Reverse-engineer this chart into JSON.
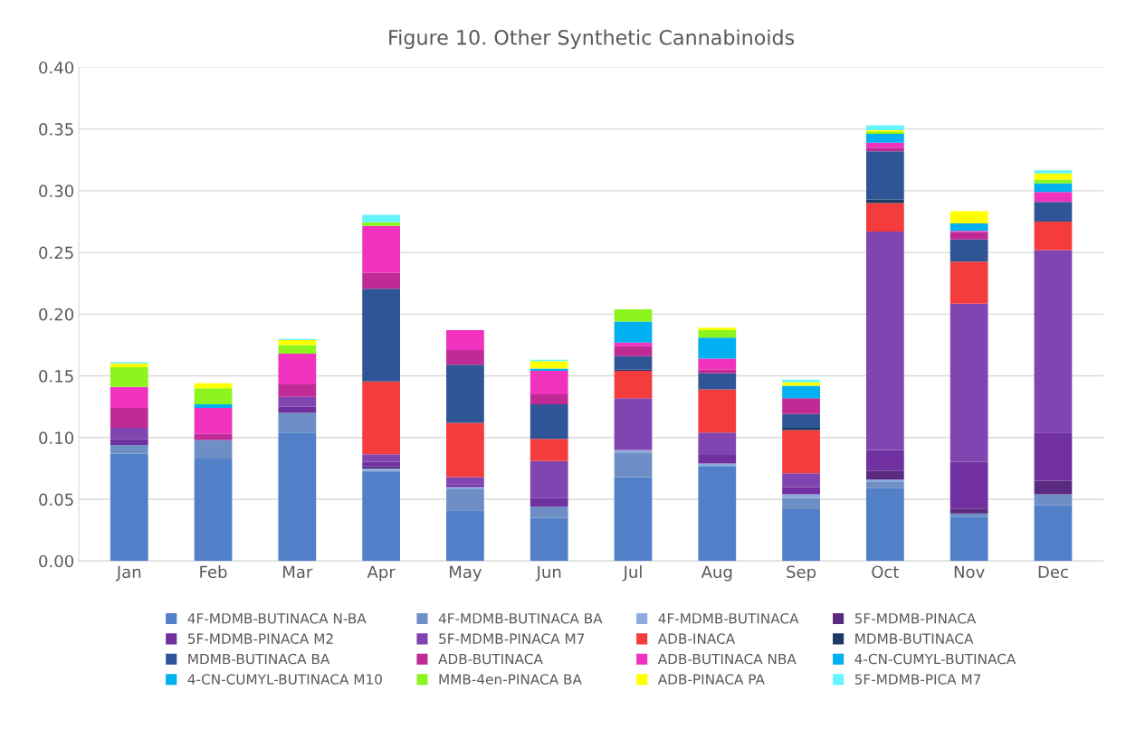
{
  "chart_data": {
    "type": "bar",
    "title": "Figure 10. Other Synthetic Cannabinoids",
    "stacked": true,
    "legend": "bottom",
    "grid": "y",
    "categories": [
      "Jan",
      "Feb",
      "Mar",
      "Apr",
      "May",
      "Jun",
      "Jul",
      "Aug",
      "Sep",
      "Oct",
      "Nov",
      "Dec"
    ],
    "ylim": [
      0,
      0.4
    ],
    "yticks": [
      {
        "value": 0,
        "label": "0.00"
      },
      {
        "value": 0.05,
        "label": "0.05"
      },
      {
        "value": 0.1,
        "label": "0.10"
      },
      {
        "value": 0.15,
        "label": "0.15"
      },
      {
        "value": 0.2,
        "label": "0.20"
      },
      {
        "value": 0.25,
        "label": "0.25"
      },
      {
        "value": 0.3,
        "label": "0.30"
      },
      {
        "value": 0.35,
        "label": "0.35"
      },
      {
        "value": 0.4,
        "label": "0.40"
      }
    ],
    "series": [
      {
        "name": "4F-MDMB-BUTINACA N-BA",
        "color": "#5180c8",
        "values": [
          0.087,
          0.083,
          0.104,
          0.072,
          0.041,
          0.035,
          0.068,
          0.077,
          0.042,
          0.059,
          0.036,
          0.045
        ]
      },
      {
        "name": "4F-MDMB-BUTINACA BA",
        "color": "#6e8fc6",
        "values": [
          0.007,
          0.015,
          0.016,
          0.001,
          0.017,
          0.009,
          0.02,
          0,
          0.009,
          0.005,
          0.0025,
          0.009
        ]
      },
      {
        "name": "4F-MDMB-BUTINACA",
        "color": "#8faadc",
        "values": [
          0,
          0,
          0,
          0.002,
          0.002,
          0,
          0.002,
          0.002,
          0.003,
          0.002,
          0,
          0
        ]
      },
      {
        "name": "5F-MDMB-PINACA",
        "color": "#5a2a80",
        "values": [
          0,
          0,
          0,
          0.0015,
          0,
          0,
          0,
          0,
          0,
          0.007,
          0.004,
          0.011
        ]
      },
      {
        "name": "5F-MDMB-PINACA M2",
        "color": "#7030a0",
        "values": [
          0.005,
          0,
          0.005,
          0.004,
          0.002,
          0.007,
          0,
          0.007,
          0.006,
          0.017,
          0.038,
          0.039
        ]
      },
      {
        "name": "5F-MDMB-PINACA M7",
        "color": "#8244b0",
        "values": [
          0.009,
          0,
          0.008,
          0.006,
          0.006,
          0.03,
          0.042,
          0.018,
          0.011,
          0.177,
          0.128,
          0.148
        ]
      },
      {
        "name": "ADB-INACA",
        "color": "#f43c3c",
        "values": [
          0,
          0,
          0,
          0.059,
          0.044,
          0.018,
          0.022,
          0.035,
          0.035,
          0.023,
          0.034,
          0.023
        ]
      },
      {
        "name": "MDMB-BUTINACA",
        "color": "#1f3864",
        "values": [
          0,
          0,
          0,
          0,
          0,
          0,
          0.001,
          0,
          0.002,
          0.003,
          0,
          0
        ]
      },
      {
        "name": "MDMB-BUTINACA BA",
        "color": "#2f5597",
        "values": [
          0,
          0,
          0,
          0.075,
          0.047,
          0.028,
          0.011,
          0.013,
          0.011,
          0.039,
          0.018,
          0.016
        ]
      },
      {
        "name": "ADB-BUTINACA",
        "color": "#c02a94",
        "values": [
          0.016,
          0.005,
          0.01,
          0.013,
          0.012,
          0.008,
          0.008,
          0.003,
          0.013,
          0.003,
          0.006,
          0
        ]
      },
      {
        "name": "ADB-BUTINACA NBA",
        "color": "#f032be",
        "values": [
          0.017,
          0.021,
          0.025,
          0.038,
          0.016,
          0.019,
          0.003,
          0.009,
          0,
          0.004,
          0.001,
          0.008
        ]
      },
      {
        "name": "4-CN-CUMYL-BUTINACA",
        "color": "#00b0f0",
        "values": [
          0,
          0.003,
          0,
          0,
          0,
          0.002,
          0.017,
          0.017,
          0.01,
          0.007,
          0.006,
          0.007
        ]
      },
      {
        "name": "4-CN-CUMYL-BUTINACA M10",
        "color": "#00b0f0",
        "values": [
          0,
          0,
          0,
          0,
          0,
          0,
          0,
          0,
          0,
          0,
          0,
          0
        ]
      },
      {
        "name": "MMB-4en-PINACA BA",
        "color": "#8cf51e",
        "values": [
          0.016,
          0.013,
          0.007,
          0.003,
          0,
          0,
          0.01,
          0.006,
          0,
          0.0015,
          0,
          0.003
        ]
      },
      {
        "name": "ADB-PINACA PA",
        "color": "#ffff00",
        "values": [
          0.003,
          0.004,
          0.004,
          0,
          0,
          0.006,
          0,
          0.002,
          0.003,
          0.0015,
          0.01,
          0.005
        ]
      },
      {
        "name": "5F-MDMB-PICA M7",
        "color": "#66f4ff",
        "values": [
          0.001,
          0,
          0.001,
          0.006,
          0,
          0.001,
          0,
          0,
          0.002,
          0.004,
          0,
          0.0025
        ]
      }
    ]
  }
}
